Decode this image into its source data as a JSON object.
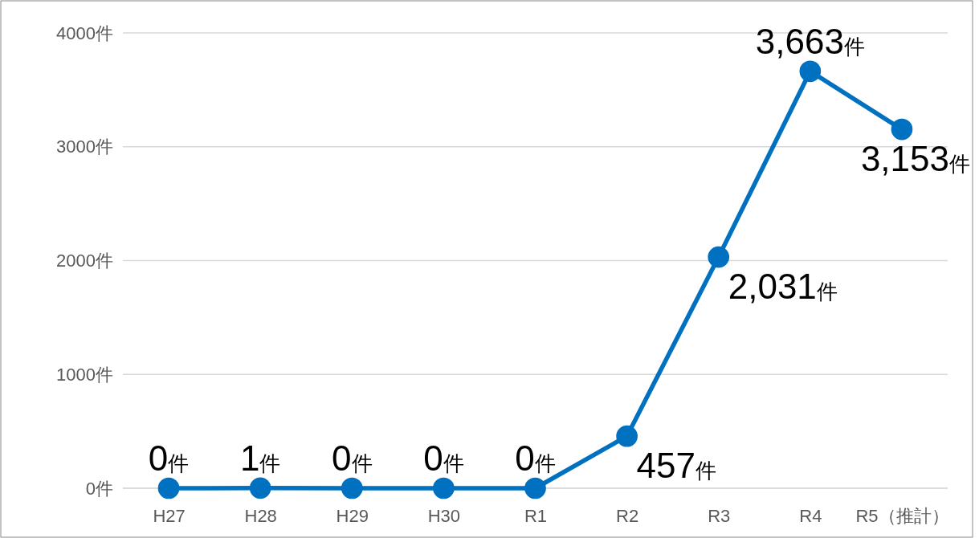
{
  "chart_data": {
    "type": "line",
    "categories": [
      "H27",
      "H28",
      "H29",
      "H30",
      "R1",
      "R2",
      "R3",
      "R4",
      "R5（推計）"
    ],
    "series": [
      {
        "color": "#0070c0",
        "values": [
          0,
          1,
          0,
          0,
          0,
          457,
          2031,
          3663,
          3153
        ],
        "value_labels": [
          "0件",
          "1件",
          "0件",
          "0件",
          "0件",
          "457件",
          "2,031件",
          "3,663件",
          "3,153件"
        ]
      }
    ],
    "ylim": [
      0,
      4000
    ],
    "yticks": [
      {
        "value": 0,
        "label": "0件"
      },
      {
        "value": 1000,
        "label": "1000件"
      },
      {
        "value": 2000,
        "label": "2000件"
      },
      {
        "value": 3000,
        "label": "3000件"
      },
      {
        "value": 4000,
        "label": "4000件"
      }
    ],
    "grid": "y",
    "marker": "circle",
    "line_style": "solid"
  }
}
